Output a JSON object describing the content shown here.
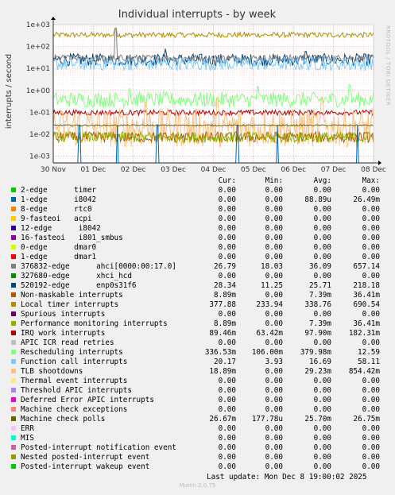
{
  "title": "Individual interrupts - by week",
  "side_label": "RRDTOOL / TOBI OETIKER",
  "footer": {
    "last_update": "Last update: Mon Dec  8 19:00:02 2025",
    "version": "Munin 2.0.75"
  },
  "legend_header": {
    "cur": "Cur:",
    "min": "Min:",
    "avg": "Avg:",
    "max": "Max:"
  },
  "legend": [
    {
      "name": "2-edge      timer",
      "color": "#00cc00",
      "cur": "0.00",
      "min": "0.00",
      "avg": "0.00",
      "max": "0.00"
    },
    {
      "name": "1-edge      i8042",
      "color": "#0066b3",
      "cur": "0.00",
      "min": "0.00",
      "avg": "88.89u",
      "max": "26.49m"
    },
    {
      "name": "8-edge      rtc0",
      "color": "#ff8000",
      "cur": "0.00",
      "min": "0.00",
      "avg": "0.00",
      "max": "0.00"
    },
    {
      "name": "9-fasteoi   acpi",
      "color": "#ffcc00",
      "cur": "0.00",
      "min": "0.00",
      "avg": "0.00",
      "max": "0.00"
    },
    {
      "name": "12-edge      i8042",
      "color": "#330099",
      "cur": "0.00",
      "min": "0.00",
      "avg": "0.00",
      "max": "0.00"
    },
    {
      "name": "16-fasteoi   i801_smbus",
      "color": "#990099",
      "cur": "0.00",
      "min": "0.00",
      "avg": "0.00",
      "max": "0.00"
    },
    {
      "name": "0-edge      dmar0",
      "color": "#ccff00",
      "cur": "0.00",
      "min": "0.00",
      "avg": "0.00",
      "max": "0.00"
    },
    {
      "name": "1-edge      dmar1",
      "color": "#ff0000",
      "cur": "0.00",
      "min": "0.00",
      "avg": "0.00",
      "max": "0.00"
    },
    {
      "name": "376832-edge      ahci[0000:00:17.0]",
      "color": "#808080",
      "cur": "26.79",
      "min": "18.03",
      "avg": "36.09",
      "max": "657.14"
    },
    {
      "name": "327680-edge      xhci_hcd",
      "color": "#008f00",
      "cur": "0.00",
      "min": "0.00",
      "avg": "0.00",
      "max": "0.00"
    },
    {
      "name": "520192-edge      enp0s31f6",
      "color": "#00487d",
      "cur": "28.34",
      "min": "11.25",
      "avg": "25.71",
      "max": "218.18"
    },
    {
      "name": "Non-maskable interrupts",
      "color": "#b35a00",
      "cur": "8.89m",
      "min": "0.00",
      "avg": "7.39m",
      "max": "36.41m"
    },
    {
      "name": "Local timer interrupts",
      "color": "#b38f00",
      "cur": "377.88",
      "min": "233.94",
      "avg": "338.76",
      "max": "690.54"
    },
    {
      "name": "Spurious interrupts",
      "color": "#6b006b",
      "cur": "0.00",
      "min": "0.00",
      "avg": "0.00",
      "max": "0.00"
    },
    {
      "name": "Performance monitoring interrupts",
      "color": "#8fb300",
      "cur": "8.89m",
      "min": "0.00",
      "avg": "7.39m",
      "max": "36.41m"
    },
    {
      "name": "IRQ work interrupts",
      "color": "#b30000",
      "cur": "89.46m",
      "min": "63.42m",
      "avg": "97.90m",
      "max": "182.31m"
    },
    {
      "name": "APIC ICR read retries",
      "color": "#bebebe",
      "cur": "0.00",
      "min": "0.00",
      "avg": "0.00",
      "max": "0.00"
    },
    {
      "name": "Rescheduling interrupts",
      "color": "#80ff80",
      "cur": "336.53m",
      "min": "106.00m",
      "avg": "379.98m",
      "max": "12.59"
    },
    {
      "name": "Function call interrupts",
      "color": "#80c9ff",
      "cur": "20.17",
      "min": "3.93",
      "avg": "16.69",
      "max": "58.11"
    },
    {
      "name": "TLB shootdowns",
      "color": "#ffc080",
      "cur": "18.89m",
      "min": "0.00",
      "avg": "29.23m",
      "max": "854.42m"
    },
    {
      "name": "Thermal event interrupts",
      "color": "#ffe680",
      "cur": "0.00",
      "min": "0.00",
      "avg": "0.00",
      "max": "0.00"
    },
    {
      "name": "Threshold APIC interrupts",
      "color": "#aa80ff",
      "cur": "0.00",
      "min": "0.00",
      "avg": "0.00",
      "max": "0.00"
    },
    {
      "name": "Deferred Error APIC interrupts",
      "color": "#ee00cc",
      "cur": "0.00",
      "min": "0.00",
      "avg": "0.00",
      "max": "0.00"
    },
    {
      "name": "Machine check exceptions",
      "color": "#ff8080",
      "cur": "0.00",
      "min": "0.00",
      "avg": "0.00",
      "max": "0.00"
    },
    {
      "name": "Machine check polls",
      "color": "#666600",
      "cur": "26.67m",
      "min": "177.78u",
      "avg": "25.70m",
      "max": "26.75m"
    },
    {
      "name": "ERR",
      "color": "#ffbfff",
      "cur": "0.00",
      "min": "0.00",
      "avg": "0.00",
      "max": "0.00"
    },
    {
      "name": "MIS",
      "color": "#00ffcc",
      "cur": "0.00",
      "min": "0.00",
      "avg": "0.00",
      "max": "0.00"
    },
    {
      "name": "Posted-interrupt notification event",
      "color": "#cc6699",
      "cur": "0.00",
      "min": "0.00",
      "avg": "0.00",
      "max": "0.00"
    },
    {
      "name": "Nested posted-interrupt event",
      "color": "#999900",
      "cur": "0.00",
      "min": "0.00",
      "avg": "0.00",
      "max": "0.00"
    },
    {
      "name": "Posted-interrupt wakeup event",
      "color": "#00cc00",
      "cur": "0.00",
      "min": "0.00",
      "avg": "0.00",
      "max": "0.00"
    }
  ],
  "chart_data": {
    "type": "line",
    "title": "Individual interrupts - by week",
    "ylabel": "interrupts / second",
    "yscale": "log",
    "ylim": [
      0.0005,
      1000
    ],
    "y_ticks": [
      "1e-03",
      "1e-02",
      "1e-01",
      "1e+00",
      "1e+01",
      "1e+02",
      "1e+03"
    ],
    "x_ticks": [
      "30 Nov",
      "01 Dec",
      "02 Dec",
      "03 Dec",
      "04 Dec",
      "05 Dec",
      "06 Dec",
      "07 Dec",
      "08 Dec"
    ],
    "grid": true,
    "series": [
      {
        "name": "Local timer interrupts",
        "color": "#b38f00",
        "level": 340,
        "noise": 0.12,
        "spikes": [
          [
            1.55,
            700
          ]
        ]
      },
      {
        "name": "520192-edge      enp0s31f6",
        "color": "#00487d",
        "level": 25,
        "noise": 0.28,
        "spikes": [
          [
            2.8,
            80
          ],
          [
            6.3,
            60
          ]
        ]
      },
      {
        "name": "376832-edge      ahci[0000:00:17.0]",
        "color": "#808080",
        "level": 30,
        "noise": 0.15,
        "spikes": [
          [
            1.55,
            657
          ]
        ]
      },
      {
        "name": "Function call interrupts",
        "color": "#80c9ff",
        "level": 16,
        "noise": 0.3,
        "spikes": []
      },
      {
        "name": "Rescheduling interrupts",
        "color": "#80ff80",
        "level": 0.38,
        "noise": 0.35,
        "spikes": [
          [
            1.9,
            1.2
          ],
          [
            5.1,
            1.5
          ],
          [
            7.4,
            1.8
          ]
        ]
      },
      {
        "name": "IRQ work interrupts",
        "color": "#b30000",
        "level": 0.098,
        "noise": 0.12,
        "spikes": []
      },
      {
        "name": "TLB shootdowns",
        "color": "#ffc080",
        "level": 0.02,
        "noise": 0.9,
        "spikes": [
          [
            2.3,
            0.3
          ],
          [
            4.1,
            0.4
          ],
          [
            6.7,
            0.5
          ]
        ]
      },
      {
        "name": "Machine check polls",
        "color": "#666600",
        "level": 0.0257,
        "noise": 0.03,
        "spikes": []
      },
      {
        "name": "Non-maskable interrupts",
        "color": "#b35a00",
        "level": 0.0074,
        "noise": 0.25,
        "spikes": []
      },
      {
        "name": "Performance monitoring interrupts",
        "color": "#8fb300",
        "level": 0.0074,
        "noise": 0.25,
        "spikes": []
      },
      {
        "name": "1-edge      i8042",
        "color": "#0066b3",
        "level": 5e-05,
        "noise": 0,
        "spikes": [
          [
            0.65,
            0.0265
          ],
          [
            1.6,
            0.0265
          ],
          [
            2.6,
            0.0265
          ],
          [
            4.6,
            0.0265
          ],
          [
            5.6,
            0.0265
          ],
          [
            7.6,
            0.0265
          ]
        ]
      }
    ]
  }
}
